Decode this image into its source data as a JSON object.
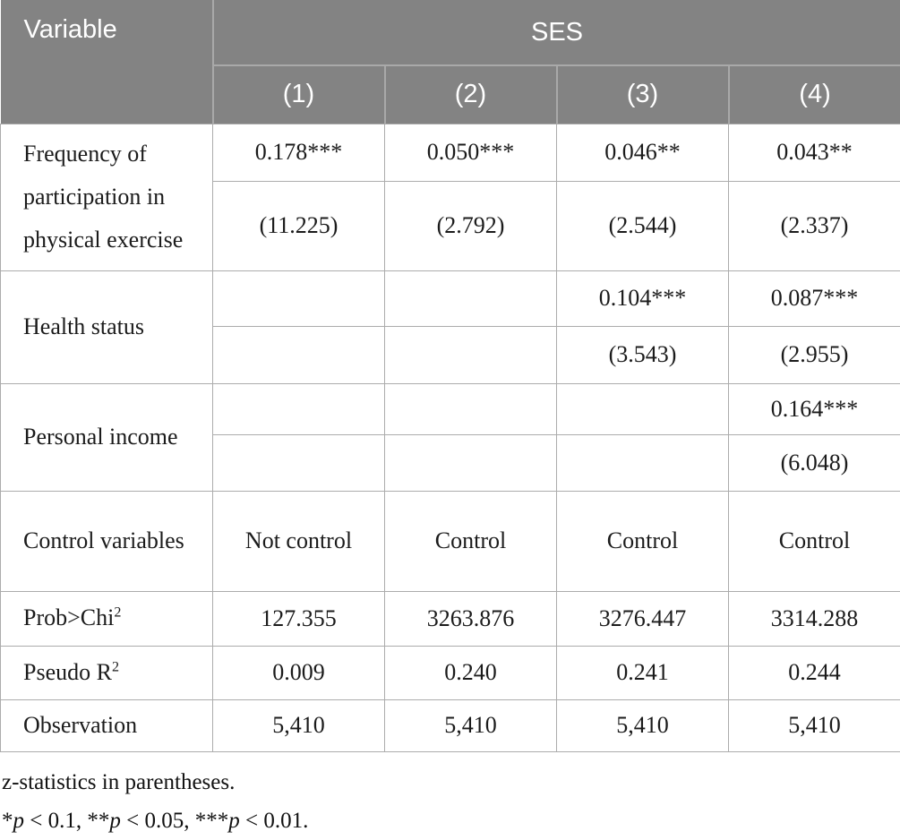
{
  "table": {
    "header": {
      "variable_label": "Variable",
      "group_label": "SES",
      "columns": [
        "(1)",
        "(2)",
        "(3)",
        "(4)"
      ]
    },
    "rows": [
      {
        "variable": "Frequency of participation in physical exercise",
        "coef": [
          "0.178***",
          "0.050***",
          "0.046**",
          "0.043**"
        ],
        "stat": [
          "(11.225)",
          "(2.792)",
          "(2.544)",
          "(2.337)"
        ]
      },
      {
        "variable": "Health status",
        "coef": [
          "",
          "",
          "0.104***",
          "0.087***"
        ],
        "stat": [
          "",
          "",
          "(3.543)",
          "(2.955)"
        ]
      },
      {
        "variable": "Personal income",
        "coef": [
          "",
          "",
          "",
          "0.164***"
        ],
        "stat": [
          "",
          "",
          "",
          "(6.048)"
        ]
      }
    ],
    "summary_rows": [
      {
        "label": "Control variables",
        "sup": "",
        "values": [
          "Not control",
          "Control",
          "Control",
          "Control"
        ]
      },
      {
        "label": "Prob>Chi",
        "sup": "2",
        "values": [
          "127.355",
          "3263.876",
          "3276.447",
          "3314.288"
        ]
      },
      {
        "label": "Pseudo R",
        "sup": "2",
        "values": [
          "0.009",
          "0.240",
          "0.241",
          "0.244"
        ]
      },
      {
        "label": "Observation",
        "sup": "",
        "values": [
          "5,410",
          "5,410",
          "5,410",
          "5,410"
        ]
      }
    ]
  },
  "notes": {
    "line1": "z-statistics in parentheses.",
    "line2_parts": [
      {
        "text": "*"
      },
      {
        "text": "p",
        "italic": true
      },
      {
        "text": " < 0.1, **"
      },
      {
        "text": "p",
        "italic": true
      },
      {
        "text": " < 0.05, ***"
      },
      {
        "text": "p",
        "italic": true
      },
      {
        "text": " < 0.01."
      }
    ]
  },
  "colors": {
    "header_background": "#838383",
    "header_text": "#ffffff",
    "header_divider": "#a9a9a9",
    "body_border": "#acacac",
    "body_text": "#1b1b1b"
  }
}
